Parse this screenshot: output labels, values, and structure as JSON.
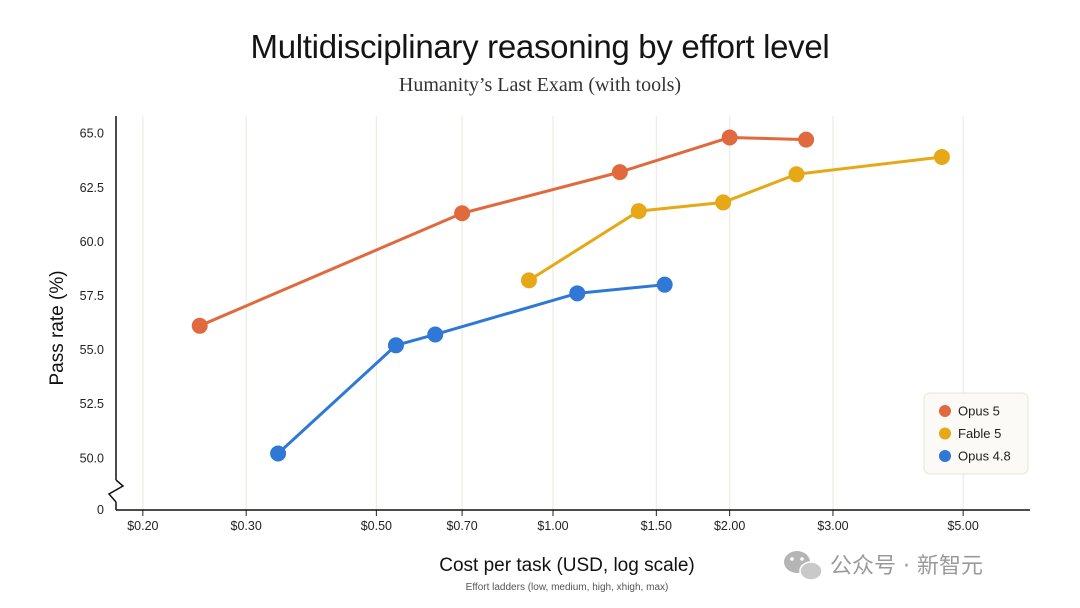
{
  "chart_data": {
    "type": "line",
    "title": "Multidisciplinary reasoning by effort level",
    "subtitle": "Humanity’s Last Exam (with tools)",
    "xlabel": "Cost per task (USD, log scale)",
    "x_note": "Effort ladders (low, medium, high, xhigh, max)",
    "ylabel": "Pass rate (%)",
    "x_scale": "log",
    "xlim": [
      0.18,
      6.5
    ],
    "ylim": [
      48.7,
      65.7
    ],
    "y_axis_break": true,
    "x_ticks": [
      {
        "value": 0.2,
        "label": "$0.20"
      },
      {
        "value": 0.3,
        "label": "$0.30"
      },
      {
        "value": 0.5,
        "label": "$0.50"
      },
      {
        "value": 0.7,
        "label": "$0.70"
      },
      {
        "value": 1.0,
        "label": "$1.00"
      },
      {
        "value": 1.5,
        "label": "$1.50"
      },
      {
        "value": 2.0,
        "label": "$2.00"
      },
      {
        "value": 3.0,
        "label": "$3.00"
      },
      {
        "value": 5.0,
        "label": "$5.00"
      }
    ],
    "y_ticks": [
      {
        "value": 65.0,
        "label": "65.0"
      },
      {
        "value": 62.5,
        "label": "62.5"
      },
      {
        "value": 60.0,
        "label": "60.0"
      },
      {
        "value": 57.5,
        "label": "57.5"
      },
      {
        "value": 55.0,
        "label": "55.0"
      },
      {
        "value": 52.5,
        "label": "52.5"
      },
      {
        "value": 50.0,
        "label": "50.0"
      }
    ],
    "y_zero_label": "0",
    "grid": "vertical",
    "legend_position": "bottom-right",
    "series": [
      {
        "name": "Opus 5",
        "color": "#E0693D",
        "x": [
          0.25,
          0.7,
          1.3,
          2.0,
          2.7
        ],
        "y": [
          56.1,
          61.3,
          63.2,
          64.8,
          64.7
        ]
      },
      {
        "name": "Fable 5",
        "color": "#E6A817",
        "x": [
          0.91,
          1.4,
          1.95,
          2.6,
          4.6
        ],
        "y": [
          58.2,
          61.4,
          61.8,
          63.1,
          63.9
        ]
      },
      {
        "name": "Opus 4.8",
        "color": "#2F78D6",
        "x": [
          0.34,
          0.54,
          0.63,
          1.1,
          1.55
        ],
        "y": [
          50.2,
          55.2,
          55.7,
          57.6,
          58.0
        ]
      }
    ]
  },
  "watermark": {
    "text": "公众号 · 新智元",
    "icon": "wechat-icon"
  }
}
